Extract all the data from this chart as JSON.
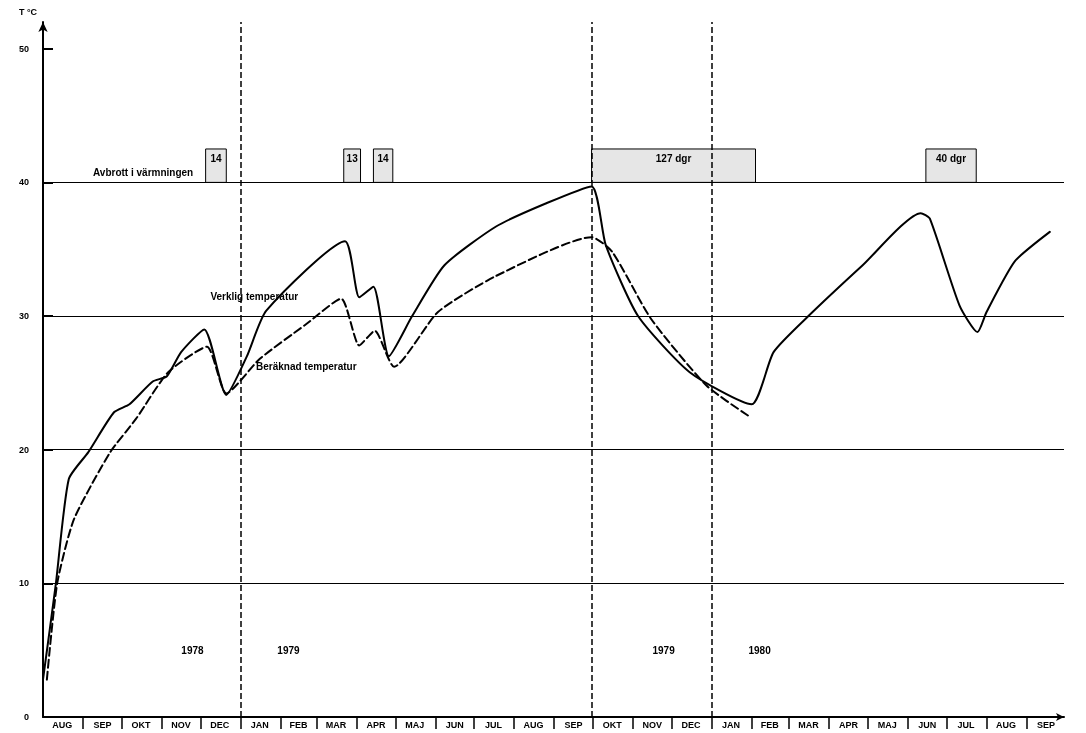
{
  "chart_data": {
    "type": "line",
    "ylabel": "T °C",
    "xlim": [
      "1978-08-01",
      "1980-09-30"
    ],
    "xticks": [
      {
        "value": "1978-08-16",
        "label": "AUG"
      },
      {
        "value": "1978-09-16",
        "label": "SEP"
      },
      {
        "value": "1978-10-16",
        "label": "OKT"
      },
      {
        "value": "1978-11-16",
        "label": "NOV"
      },
      {
        "value": "1978-12-16",
        "label": "DEC"
      },
      {
        "value": "1979-01-16",
        "label": "JAN"
      },
      {
        "value": "1979-02-15",
        "label": "FEB"
      },
      {
        "value": "1979-03-16",
        "label": "MAR"
      },
      {
        "value": "1979-04-16",
        "label": "APR"
      },
      {
        "value": "1979-05-16",
        "label": "MAJ"
      },
      {
        "value": "1979-06-16",
        "label": "JUN"
      },
      {
        "value": "1979-07-16",
        "label": "JUL"
      },
      {
        "value": "1979-08-16",
        "label": "AUG"
      },
      {
        "value": "1979-09-16",
        "label": "SEP"
      },
      {
        "value": "1979-10-16",
        "label": "OKT"
      },
      {
        "value": "1979-11-16",
        "label": "NOV"
      },
      {
        "value": "1979-12-16",
        "label": "DEC"
      },
      {
        "value": "1980-01-16",
        "label": "JAN"
      },
      {
        "value": "1980-02-15",
        "label": "FEB"
      },
      {
        "value": "1980-03-16",
        "label": "MAR"
      },
      {
        "value": "1980-04-16",
        "label": "APR"
      },
      {
        "value": "1980-05-16",
        "label": "MAJ"
      },
      {
        "value": "1980-06-16",
        "label": "JUN"
      },
      {
        "value": "1980-07-16",
        "label": "JUL"
      },
      {
        "value": "1980-08-16",
        "label": "AUG"
      },
      {
        "value": "1980-09-16",
        "label": "SEP"
      },
      {
        "value": "1978-09-01",
        "label": null
      },
      {
        "value": "1978-10-01",
        "label": null
      },
      {
        "value": "1978-11-01",
        "label": null
      },
      {
        "value": "1978-12-01",
        "label": null
      },
      {
        "value": "1979-01-01",
        "label": null
      },
      {
        "value": "1979-02-01",
        "label": null
      },
      {
        "value": "1979-03-01",
        "label": null
      },
      {
        "value": "1979-04-01",
        "label": null
      },
      {
        "value": "1979-05-01",
        "label": null
      },
      {
        "value": "1979-06-01",
        "label": null
      },
      {
        "value": "1979-07-01",
        "label": null
      },
      {
        "value": "1979-08-01",
        "label": null
      },
      {
        "value": "1979-09-01",
        "label": null
      },
      {
        "value": "1979-10-01",
        "label": null
      },
      {
        "value": "1979-11-01",
        "label": null
      },
      {
        "value": "1979-12-01",
        "label": null
      },
      {
        "value": "1980-01-01",
        "label": null
      },
      {
        "value": "1980-02-01",
        "label": null
      },
      {
        "value": "1980-03-01",
        "label": null
      },
      {
        "value": "1980-04-01",
        "label": null
      },
      {
        "value": "1980-05-01",
        "label": null
      },
      {
        "value": "1980-06-01",
        "label": null
      },
      {
        "value": "1980-07-01",
        "label": null
      },
      {
        "value": "1980-08-01",
        "label": null
      },
      {
        "value": "1980-09-01",
        "label": null
      }
    ],
    "ylim": [
      0,
      52
    ],
    "yticks": [
      0,
      10,
      20,
      30,
      40,
      50
    ],
    "grid": false,
    "legend": false,
    "marker": "none",
    "series": [
      {
        "name": "Verklig temperatur",
        "color": "#000000",
        "line_style": "solid",
        "x": [
          "1978-08-01",
          "1978-08-11",
          "1978-08-21",
          "1978-09-05",
          "1978-09-25",
          "1978-10-07",
          "1978-10-25",
          "1978-11-05",
          "1978-11-16",
          "1978-12-04",
          "1978-12-21",
          "1979-01-06",
          "1979-01-21",
          "1979-03-23",
          "1979-04-03",
          "1979-04-14",
          "1979-04-26",
          "1979-05-14",
          "1979-06-08",
          "1979-07-18",
          "1979-08-25",
          "1979-09-30",
          "1979-10-11",
          "1979-11-05",
          "1979-12-15",
          "1980-02-01",
          "1980-02-18",
          "1980-03-16",
          "1980-04-27",
          "1980-06-11",
          "1980-06-18",
          "1980-07-11",
          "1980-07-25",
          "1980-08-01",
          "1980-08-23",
          "1980-09-19"
        ],
        "values": [
          2.8,
          10,
          17.8,
          19.8,
          22.8,
          23.4,
          25.1,
          25.5,
          27.3,
          29.0,
          24.1,
          27.0,
          30.4,
          35.6,
          31.4,
          32.2,
          27.0,
          30.0,
          33.8,
          36.7,
          38.4,
          39.7,
          35.3,
          30.0,
          25.8,
          23.4,
          27.3,
          30.0,
          33.8,
          37.7,
          37.3,
          30.8,
          28.8,
          30.3,
          34.1,
          36.3
        ]
      },
      {
        "name": "Beräknad temperatur",
        "color": "#000000",
        "line_style": "dashed",
        "x": [
          "1978-08-04",
          "1978-08-12",
          "1978-08-25",
          "1978-09-22",
          "1978-10-12",
          "1978-11-06",
          "1978-12-06",
          "1978-12-21",
          "1979-01-16",
          "1979-02-21",
          "1979-03-20",
          "1979-04-03",
          "1979-04-15",
          "1979-04-30",
          "1979-06-03",
          "1979-07-18",
          "1979-09-30",
          "1979-10-16",
          "1979-11-15",
          "1979-12-28",
          "1980-01-30"
        ],
        "values": [
          2.8,
          10,
          14.8,
          19.8,
          22.3,
          25.8,
          27.7,
          24.2,
          26.8,
          29.4,
          31.3,
          27.8,
          28.9,
          26.2,
          30.3,
          33.0,
          35.9,
          34.8,
          29.8,
          24.8,
          22.5
        ]
      }
    ],
    "ref_lines": [
      {
        "axis": "y",
        "value": 10,
        "label": null,
        "line_style": "solid"
      },
      {
        "axis": "y",
        "value": 20,
        "label": null,
        "line_style": "solid"
      },
      {
        "axis": "y",
        "value": 30,
        "label": null,
        "line_style": "solid"
      },
      {
        "axis": "y",
        "value": 40,
        "label": "Avbrott i värmningen",
        "line_style": "solid"
      },
      {
        "axis": "x",
        "value": "1979-01-01",
        "label": null,
        "line_style": "dashed"
      },
      {
        "axis": "x",
        "value": "1979-09-30",
        "label": null,
        "line_style": "dashed"
      },
      {
        "axis": "x",
        "value": "1980-01-01",
        "label": null,
        "line_style": "dashed"
      }
    ],
    "bands": [
      {
        "axis": "x",
        "from": "1978-12-05",
        "to": "1978-12-21",
        "label": "14"
      },
      {
        "axis": "x",
        "from": "1979-03-22",
        "to": "1979-04-04",
        "label": "13"
      },
      {
        "axis": "x",
        "from": "1979-04-14",
        "to": "1979-04-29",
        "label": "14"
      },
      {
        "axis": "x",
        "from": "1979-09-30",
        "to": "1980-02-04",
        "label": "127 dgr"
      },
      {
        "axis": "x",
        "from": "1980-06-15",
        "to": "1980-07-24",
        "label": "40 dgr"
      }
    ],
    "annotations": [
      "1978",
      "1979",
      "1979",
      "1980"
    ]
  }
}
